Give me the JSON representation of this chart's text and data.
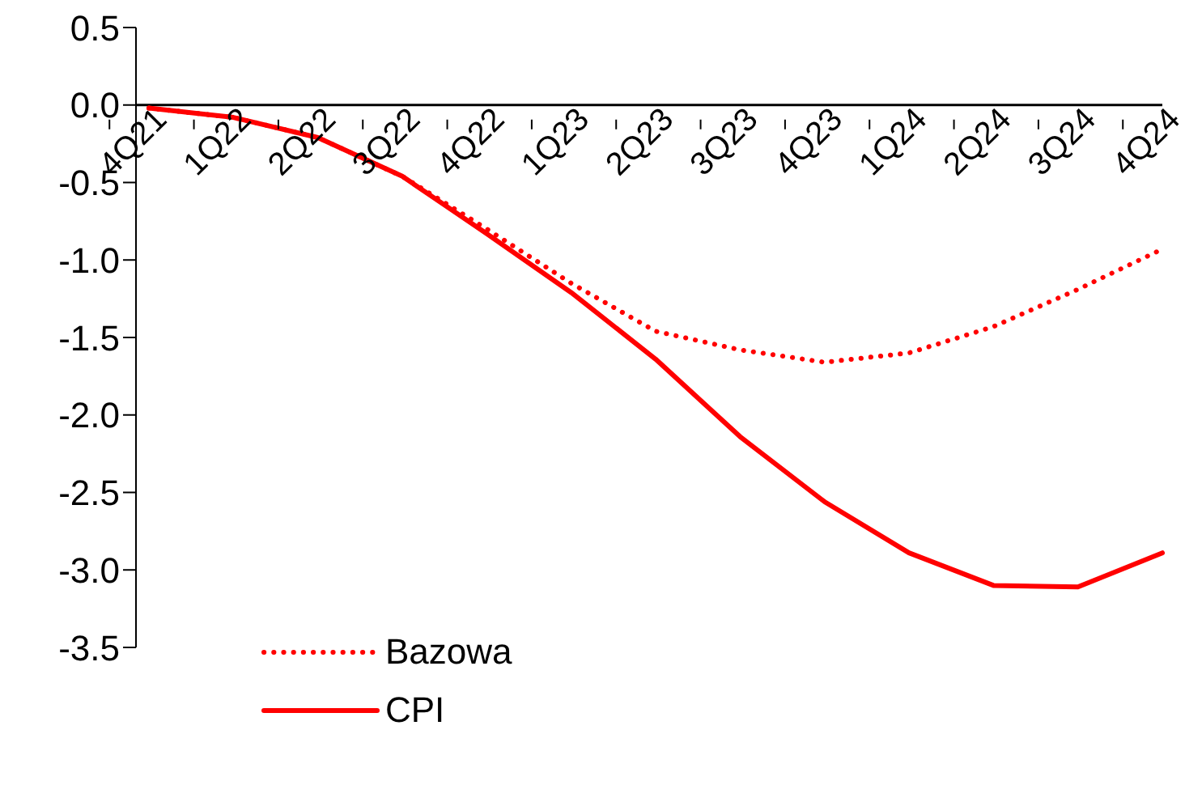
{
  "chart_data": {
    "type": "line",
    "categories": [
      "4Q21",
      "1Q22",
      "2Q22",
      "3Q22",
      "4Q22",
      "1Q23",
      "2Q23",
      "3Q23",
      "4Q23",
      "1Q24",
      "2Q24",
      "3Q24",
      "4Q24"
    ],
    "series": [
      {
        "name": "Bazowa",
        "color": "#ff0000",
        "line_style": "dotted",
        "values": [
          -0.02,
          -0.08,
          -0.21,
          -0.46,
          -0.8,
          -1.15,
          -1.46,
          -1.58,
          -1.66,
          -1.6,
          -1.43,
          -1.19,
          -0.93
        ]
      },
      {
        "name": "CPI",
        "color": "#ff0000",
        "line_style": "solid",
        "values": [
          -0.02,
          -0.08,
          -0.21,
          -0.46,
          -0.83,
          -1.21,
          -1.64,
          -2.14,
          -2.56,
          -2.89,
          -3.1,
          -3.11,
          -2.89
        ]
      }
    ],
    "ylim": [
      -3.5,
      0.5
    ],
    "yticks": [
      -3.5,
      {
        "value": -3,
        "label": "-3.0"
      },
      -2.5,
      {
        "value": -2,
        "label": "-2.0"
      },
      -1.5,
      {
        "value": -1,
        "label": "-1.0"
      },
      -0.5,
      {
        "value": 0,
        "label": "0.0"
      },
      0.5
    ],
    "grid": false,
    "legend": "bottom left",
    "marker": "none"
  }
}
